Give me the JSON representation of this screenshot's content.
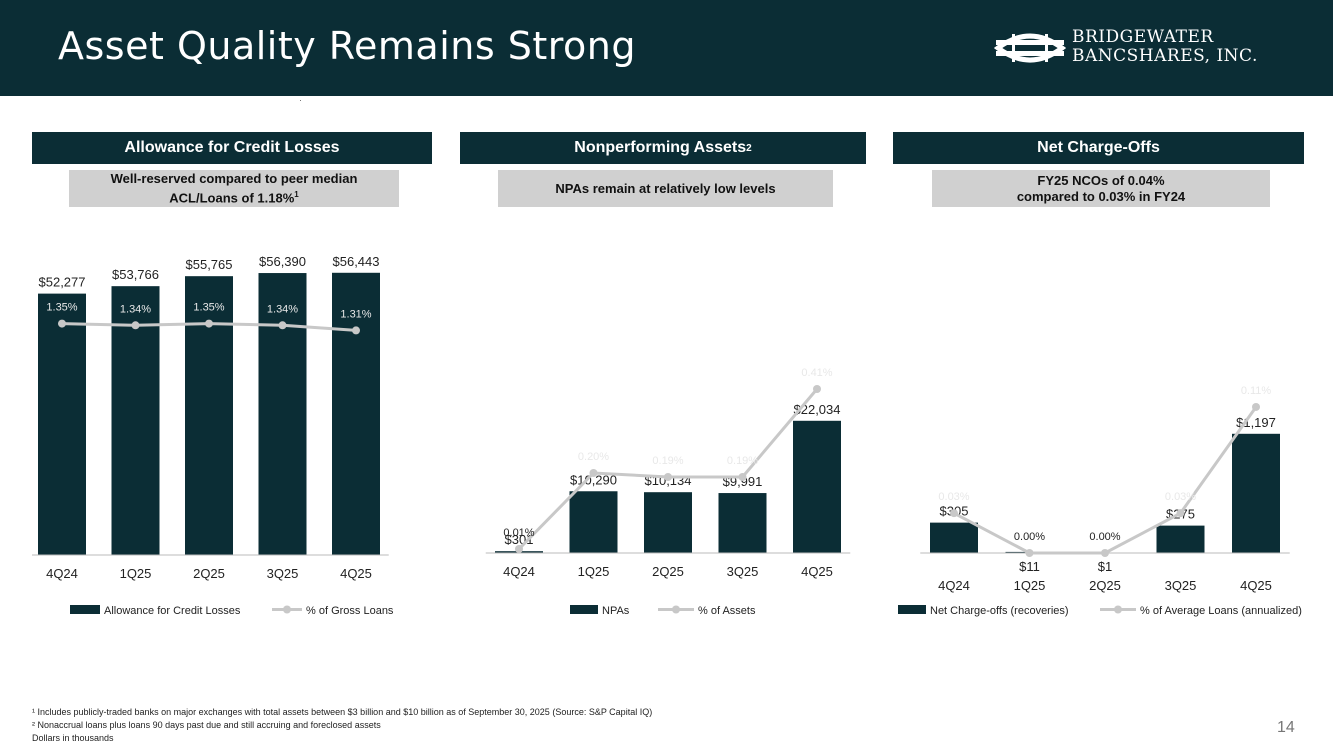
{
  "title": "Asset Quality Remains Strong",
  "logo": {
    "line1": "Bridgewater",
    "line2": "Bancshares, Inc."
  },
  "colors": {
    "navy": "#0b2d35",
    "line": "#c8c8c8",
    "box": "#d0d0d0",
    "marker": "#c8c8c8"
  },
  "panels": [
    {
      "header": "Allowance for Credit Losses",
      "header_sup": "",
      "note_line1": "Well-reserved compared to peer median",
      "note_line2": "ACL/Loans of 1.18%",
      "note_sup": "1"
    },
    {
      "header": "Nonperforming Assets",
      "header_sup": "2",
      "note_line1": "NPAs remain at relatively low levels",
      "note_line2": "",
      "note_sup": ""
    },
    {
      "header": "Net Charge-Offs",
      "header_sup": "",
      "note_line1": "FY25 NCOs of 0.04%",
      "note_line2": "compared to 0.03% in FY24",
      "note_sup": ""
    }
  ],
  "chart_data": [
    {
      "type": "bar",
      "title": "Allowance for Credit Losses",
      "categories": [
        "4Q24",
        "1Q25",
        "2Q25",
        "3Q25",
        "4Q25"
      ],
      "series": [
        {
          "name": "Allowance for Credit Losses",
          "type": "bar",
          "values": [
            52277,
            53766,
            55765,
            56390,
            56443
          ],
          "labels": [
            "$52,277",
            "$53,766",
            "$55,765",
            "$56,390",
            "$56,443"
          ]
        },
        {
          "name": "% of Gross Loans",
          "type": "line",
          "values": [
            1.35,
            1.34,
            1.35,
            1.34,
            1.31
          ],
          "labels": [
            "1.35%",
            "1.34%",
            "1.35%",
            "1.34%",
            "1.31%"
          ]
        }
      ],
      "ylim": [
        0,
        60000
      ],
      "line_ylim": [
        0,
        1.75
      ]
    },
    {
      "type": "bar",
      "title": "Nonperforming Assets",
      "categories": [
        "4Q24",
        "1Q25",
        "2Q25",
        "3Q25",
        "4Q25"
      ],
      "series": [
        {
          "name": "NPAs",
          "type": "bar",
          "values": [
            301,
            10290,
            10134,
            9991,
            22034
          ],
          "labels": [
            "$301",
            "$10,290",
            "$10,134",
            "$9,991",
            "$22,034"
          ]
        },
        {
          "name": "% of Assets",
          "type": "line",
          "values": [
            0.01,
            0.2,
            0.19,
            0.19,
            0.41
          ],
          "labels": [
            "0.01%",
            "0.20%",
            "0.19%",
            "0.19%",
            "0.41%"
          ]
        }
      ],
      "ylim": [
        0,
        40000
      ],
      "line_ylim": [
        0,
        0.6
      ]
    },
    {
      "type": "bar",
      "title": "Net Charge-Offs",
      "categories": [
        "4Q24",
        "1Q25",
        "2Q25",
        "3Q25",
        "4Q25"
      ],
      "series": [
        {
          "name": "Net Charge-offs (recoveries)",
          "type": "bar",
          "values": [
            305,
            11,
            1,
            275,
            1197
          ],
          "labels": [
            "$305",
            "$11",
            "$1",
            "$275",
            "$1,197"
          ]
        },
        {
          "name": "% of Average Loans (annualized)",
          "type": "line",
          "values": [
            0.03,
            0.0,
            0.0,
            0.03,
            0.11
          ],
          "labels": [
            "0.03%",
            "0.00%",
            "0.00%",
            "0.03%",
            "0.11%"
          ]
        }
      ],
      "ylim": [
        0,
        2400
      ],
      "line_ylim": [
        0,
        0.18
      ]
    }
  ],
  "footnotes": [
    "¹ Includes publicly-traded banks on major exchanges with total assets between $3 billion and $10 billion as of September 30, 2025 (Source: S&P Capital IQ)",
    "² Nonaccrual loans plus loans 90 days past due and still accruing and foreclosed assets",
    "Dollars in thousands"
  ],
  "page_number": "14"
}
